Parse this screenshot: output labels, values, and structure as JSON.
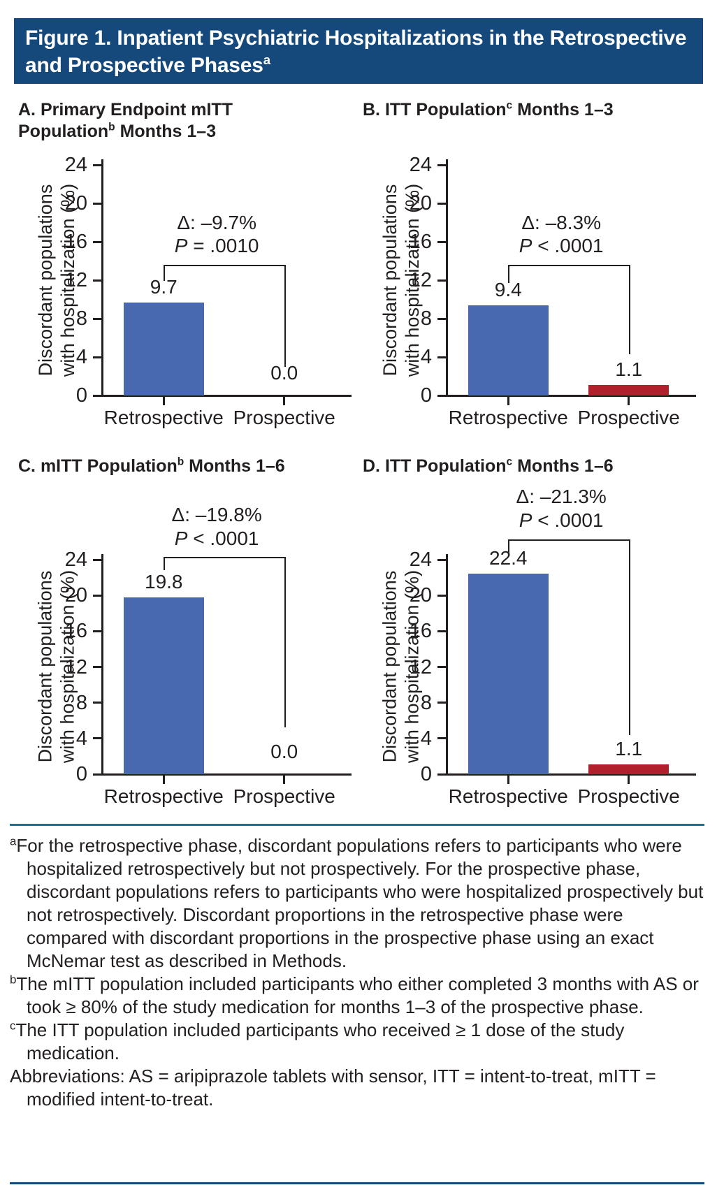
{
  "header": {
    "title": "Figure 1. Inpatient Psychiatric Hospitalizations in the Retrospective and Prospective Phases",
    "title_sup": "a",
    "bg_color": "#15497c"
  },
  "colors": {
    "retrospective_bar": "#4868b0",
    "prospective_bar": "#b11f2d",
    "axis_and_text": "#231f20",
    "top_divider": "#1b6e94",
    "bottom_divider": "#17497d"
  },
  "y_axis": {
    "label_line1": "Discordant populations",
    "label_line2": "with hospitalization (%)",
    "ticks": [
      0,
      4,
      8,
      12,
      16,
      20,
      24
    ],
    "max": 24
  },
  "x_categories": [
    "Retrospective",
    "Prospective"
  ],
  "chart_data": [
    {
      "panel": "A",
      "type": "bar",
      "title": {
        "pre": "A. Primary Endpoint mITT Population",
        "sup": "b",
        "post": " Months 1–3"
      },
      "categories": [
        "Retrospective",
        "Prospective"
      ],
      "values": [
        9.7,
        0.0
      ],
      "value_labels": [
        "9.7",
        "0.0"
      ],
      "bar_colors": [
        "#4868b0",
        null
      ],
      "delta_label": "Δ: –9.7%",
      "p_italic": "P",
      "p_rest": " = .0010",
      "ylabel": "Discordant populations with hospitalization (%)",
      "ylim": [
        0,
        24
      ],
      "grid": false,
      "bracket": {
        "y": 13.6,
        "left_drop_to": 11.9,
        "right_drop_to": 3.0
      }
    },
    {
      "panel": "B",
      "type": "bar",
      "title": {
        "pre": "B. ITT Population",
        "sup": "c",
        "post": " Months 1–3"
      },
      "categories": [
        "Retrospective",
        "Prospective"
      ],
      "values": [
        9.4,
        1.1
      ],
      "value_labels": [
        "9.4",
        "1.1"
      ],
      "bar_colors": [
        "#4868b0",
        "#b11f2d"
      ],
      "delta_label": "Δ: –8.3%",
      "p_italic": "P",
      "p_rest": " < .0001",
      "ylabel": "Discordant populations with hospitalization (%)",
      "ylim": [
        0,
        24
      ],
      "grid": false,
      "bracket": {
        "y": 13.6,
        "left_drop_to": 11.7,
        "right_drop_to": 4.3
      }
    },
    {
      "panel": "C",
      "type": "bar",
      "title": {
        "pre": "C. mITT Population",
        "sup": "b",
        "post": " Months 1–6"
      },
      "categories": [
        "Retrospective",
        "Prospective"
      ],
      "values": [
        19.8,
        0.0
      ],
      "value_labels": [
        "19.8",
        "0.0"
      ],
      "bar_colors": [
        "#4868b0",
        null
      ],
      "delta_label": "Δ: –19.8%",
      "p_italic": "P",
      "p_rest": " < .0001",
      "ylabel": "Discordant populations with hospitalization (%)",
      "ylim": [
        0,
        24
      ],
      "grid": false,
      "bracket": {
        "y": 24.3,
        "left_drop_to": 22.8,
        "right_drop_to": 5.2
      }
    },
    {
      "panel": "D",
      "type": "bar",
      "title": {
        "pre": "D. ITT Population",
        "sup": "c",
        "post": " Months 1–6"
      },
      "categories": [
        "Retrospective",
        "Prospective"
      ],
      "values": [
        22.4,
        1.1
      ],
      "value_labels": [
        "22.4",
        "1.1"
      ],
      "bar_colors": [
        "#4868b0",
        "#b11f2d"
      ],
      "delta_label": "Δ: –21.3%",
      "p_italic": "P",
      "p_rest": " < .0001",
      "ylabel": "Discordant populations with hospitalization (%)",
      "ylim": [
        0,
        24
      ],
      "grid": false,
      "bracket": {
        "y": 26.3,
        "left_drop_to": 24.8,
        "right_drop_to": 4.4
      }
    }
  ],
  "footnotes": [
    {
      "marker": "a",
      "text": "For the retrospective phase, discordant populations refers to participants who were hospitalized retrospectively but not prospectively. For the prospective phase, discordant populations refers to participants who were hospitalized prospectively but not retrospectively. Discordant proportions in the retrospective phase were compared with discordant proportions in the prospective phase using an exact McNemar test as described in Methods."
    },
    {
      "marker": "b",
      "text": "The mITT population included participants who either completed 3 months with AS or took ≥ 80% of the study medication for months 1–3 of the prospective phase."
    },
    {
      "marker": "c",
      "text": "The ITT population included participants who received ≥ 1 dose of the study medication."
    },
    {
      "marker": "",
      "text": "Abbreviations: AS = aripiprazole tablets with sensor, ITT = intent-to-treat, mITT = modified intent-to-treat."
    }
  ]
}
